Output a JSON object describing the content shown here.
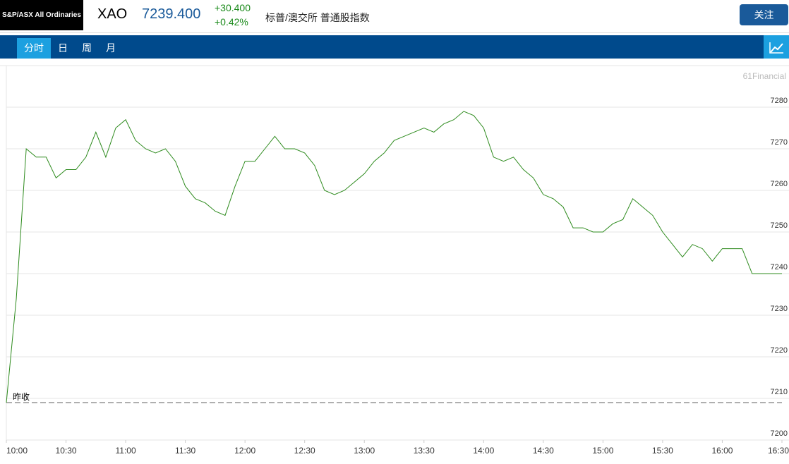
{
  "header": {
    "logo": "S&P/ASX All Ordinaries",
    "symbol": "XAO",
    "price": "7239.400",
    "change": "+30.400",
    "change_pct": "+0.42%",
    "name": "标普/澳交所 普通股指数",
    "follow_button": "关注"
  },
  "tabs": [
    "分时",
    "日",
    "周",
    "月"
  ],
  "chart_data": {
    "type": "line",
    "watermark": "61Financial",
    "x": [
      "10:00",
      "10:05",
      "10:10",
      "10:15",
      "10:20",
      "10:25",
      "10:30",
      "10:35",
      "10:40",
      "10:45",
      "10:50",
      "10:55",
      "11:00",
      "11:05",
      "11:10",
      "11:15",
      "11:20",
      "11:25",
      "11:30",
      "11:35",
      "11:40",
      "11:45",
      "11:50",
      "11:55",
      "12:00",
      "12:05",
      "12:10",
      "12:15",
      "12:20",
      "12:25",
      "12:30",
      "12:35",
      "12:40",
      "12:45",
      "12:50",
      "12:55",
      "13:00",
      "13:05",
      "13:10",
      "13:15",
      "13:20",
      "13:25",
      "13:30",
      "13:35",
      "13:40",
      "13:45",
      "13:50",
      "13:55",
      "14:00",
      "14:05",
      "14:10",
      "14:15",
      "14:20",
      "14:25",
      "14:30",
      "14:35",
      "14:40",
      "14:45",
      "14:50",
      "14:55",
      "15:00",
      "15:05",
      "15:10",
      "15:15",
      "15:20",
      "15:25",
      "15:30",
      "15:35",
      "15:40",
      "15:45",
      "15:50",
      "15:55",
      "16:00",
      "16:05",
      "16:10",
      "16:15",
      "16:20",
      "16:25",
      "16:30"
    ],
    "series": [
      {
        "name": "XAO",
        "color": "#2e8b1e",
        "values": [
          7209,
          7234,
          7270,
          7268,
          7268,
          7263,
          7265,
          7265,
          7268,
          7274,
          7268,
          7275,
          7277,
          7272,
          7270,
          7269,
          7270,
          7267,
          7261,
          7258,
          7257,
          7255,
          7254,
          7261,
          7267,
          7267,
          7270,
          7273,
          7270,
          7270,
          7269,
          7266,
          7260,
          7259,
          7260,
          7262,
          7264,
          7267,
          7269,
          7272,
          7273,
          7274,
          7275,
          7274,
          7276,
          7277,
          7279,
          7278,
          7275,
          7268,
          7267,
          7268,
          7265,
          7263,
          7259,
          7258,
          7256,
          7251,
          7251,
          7250,
          7250,
          7252,
          7253,
          7258,
          7256,
          7254,
          7250,
          7247,
          7244,
          7247,
          7246,
          7243,
          7246,
          7246,
          7246,
          7240,
          7240,
          7240,
          7240
        ]
      }
    ],
    "prev_close": {
      "label": "昨收",
      "value": 7209
    },
    "xlim": [
      "10:00",
      "16:30"
    ],
    "xticks": [
      "10:00",
      "10:30",
      "11:00",
      "11:30",
      "12:00",
      "12:30",
      "13:00",
      "13:30",
      "14:00",
      "14:30",
      "15:00",
      "15:30",
      "16:00",
      "16:30"
    ],
    "ylim": [
      7200,
      7290
    ],
    "yticks": [
      7200,
      7210,
      7220,
      7230,
      7240,
      7250,
      7260,
      7270,
      7280
    ],
    "grid": true
  }
}
